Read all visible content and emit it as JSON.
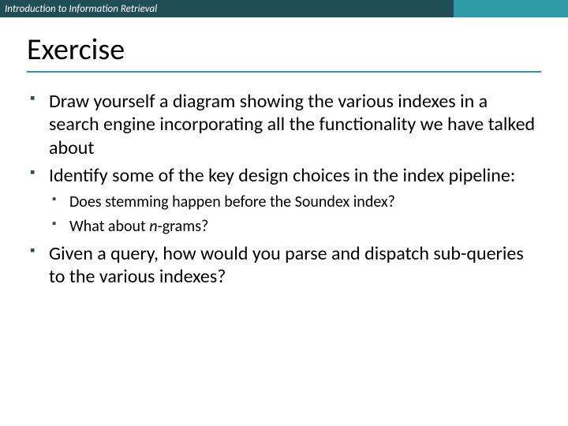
{
  "header": {
    "label": "Introduction to Information Retrieval"
  },
  "colors": {
    "header_left_bg": "#1f4e55",
    "header_right_bg": "#2e9ca8",
    "title_underline": "#2e9ca8",
    "bullet_color": "#1f4e55",
    "background": "#ffffff",
    "text": "#000000"
  },
  "title": "Exercise",
  "bullets": {
    "b1": "Draw yourself a diagram showing the various indexes in a search engine incorporating all the functionality we have talked about",
    "b2": "Identify some of the key design choices in the index pipeline:",
    "b2_sub1": "Does stemming happen before the Soundex index?",
    "b2_sub2_prefix": "What about ",
    "b2_sub2_italic": "n",
    "b2_sub2_suffix": "-grams?",
    "b3": "Given a query, how would you parse and dispatch sub-queries to the various indexes?"
  },
  "typography": {
    "title_fontsize": 38,
    "level1_fontsize": 24,
    "level2_fontsize": 20,
    "header_fontsize": 13
  }
}
